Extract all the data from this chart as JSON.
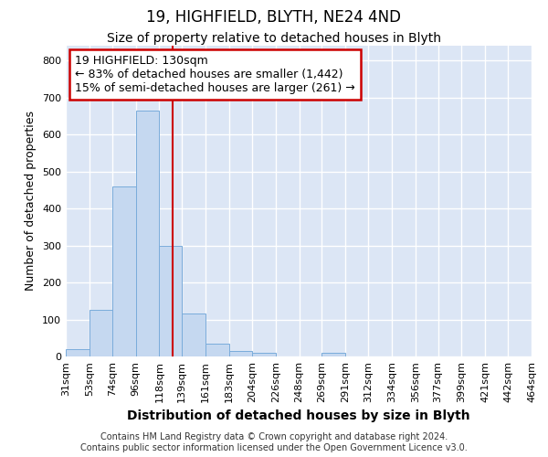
{
  "title1": "19, HIGHFIELD, BLYTH, NE24 4ND",
  "title2": "Size of property relative to detached houses in Blyth",
  "xlabel": "Distribution of detached houses by size in Blyth",
  "ylabel": "Number of detached properties",
  "footer1": "Contains HM Land Registry data © Crown copyright and database right 2024.",
  "footer2": "Contains public sector information licensed under the Open Government Licence v3.0.",
  "annotation_line1": "19 HIGHFIELD: 130sqm",
  "annotation_line2": "← 83% of detached houses are smaller (1,442)",
  "annotation_line3": "15% of semi-detached houses are larger (261) →",
  "bar_color": "#c5d8f0",
  "bar_edge_color": "#7aacdb",
  "vline_color": "#cc0000",
  "annotation_box_color": "#ffffff",
  "annotation_box_edge": "#cc0000",
  "fig_background": "#ffffff",
  "plot_background": "#dce6f5",
  "grid_color": "#ffffff",
  "bin_edges": [
    31,
    53,
    74,
    96,
    118,
    139,
    161,
    183,
    204,
    226,
    248,
    269,
    291,
    312,
    334,
    356,
    377,
    399,
    421,
    442,
    464
  ],
  "bin_labels": [
    "31sqm",
    "53sqm",
    "74sqm",
    "96sqm",
    "118sqm",
    "139sqm",
    "161sqm",
    "183sqm",
    "204sqm",
    "226sqm",
    "248sqm",
    "269sqm",
    "291sqm",
    "312sqm",
    "334sqm",
    "356sqm",
    "377sqm",
    "399sqm",
    "421sqm",
    "442sqm",
    "464sqm"
  ],
  "counts": [
    20,
    127,
    460,
    665,
    300,
    115,
    35,
    15,
    10,
    0,
    0,
    10,
    0,
    0,
    0,
    0,
    0,
    0,
    0,
    0
  ],
  "vline_x": 130,
  "ylim": [
    0,
    840
  ],
  "yticks": [
    0,
    100,
    200,
    300,
    400,
    500,
    600,
    700,
    800
  ],
  "title1_fontsize": 12,
  "title2_fontsize": 10,
  "xlabel_fontsize": 10,
  "ylabel_fontsize": 9,
  "tick_fontsize": 8,
  "footer_fontsize": 7,
  "annot_fontsize": 9
}
